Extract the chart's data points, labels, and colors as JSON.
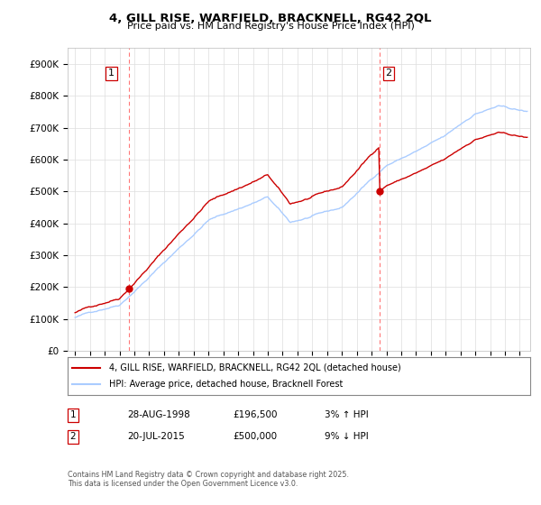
{
  "title": "4, GILL RISE, WARFIELD, BRACKNELL, RG42 2QL",
  "subtitle": "Price paid vs. HM Land Registry's House Price Index (HPI)",
  "legend_line1": "4, GILL RISE, WARFIELD, BRACKNELL, RG42 2QL (detached house)",
  "legend_line2": "HPI: Average price, detached house, Bracknell Forest",
  "footer": "Contains HM Land Registry data © Crown copyright and database right 2025.\nThis data is licensed under the Open Government Licence v3.0.",
  "sale1_year": 1998.66,
  "sale2_year": 2015.55,
  "sale1_price": 196500,
  "sale2_price": 500000,
  "hpi_color": "#aaccff",
  "price_color": "#cc0000",
  "dashed_color": "#ff7777",
  "ylim_min": 0,
  "ylim_max": 950000,
  "xlim_min": 1994.5,
  "xlim_max": 2025.7,
  "background_color": "#ffffff",
  "grid_color": "#dddddd"
}
